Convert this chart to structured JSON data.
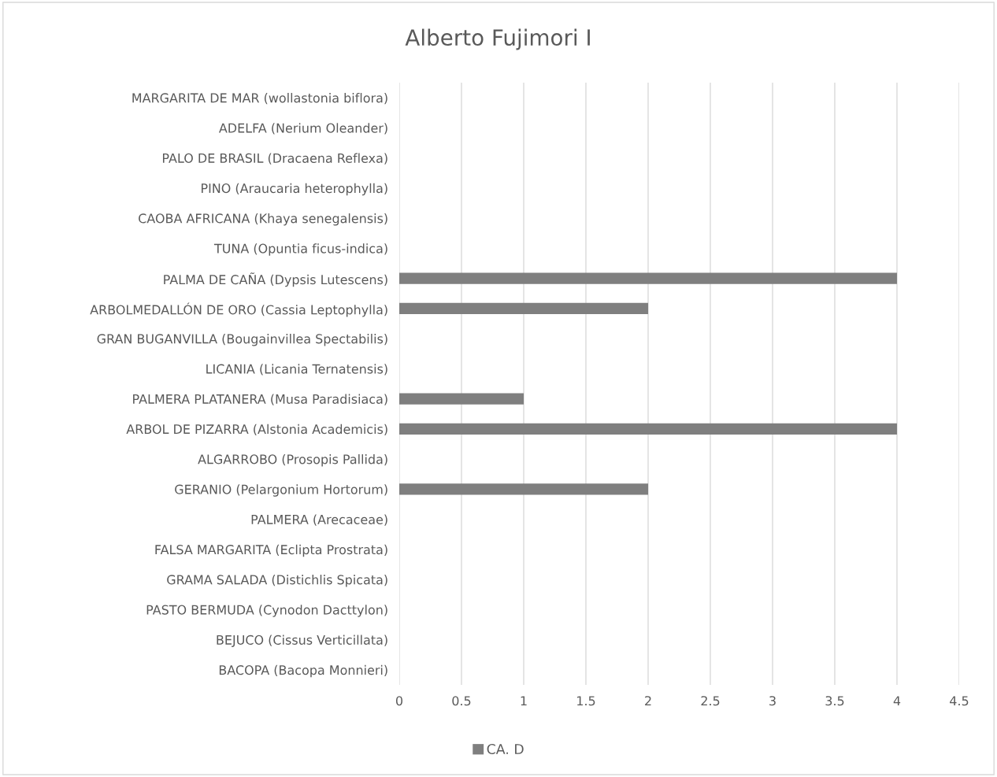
{
  "chart_data": {
    "type": "bar",
    "orientation": "horizontal",
    "title": "Alberto Fujimori I",
    "categories": [
      "MARGARITA DE MAR (wollastonia biflora)",
      "ADELFA (Nerium Oleander)",
      "PALO DE BRASIL (Dracaena Reflexa)",
      "PINO (Araucaria heterophylla)",
      "CAOBA AFRICANA (Khaya senegalensis)",
      "TUNA (Opuntia ficus-indica)",
      "PALMA DE CAÑA (Dypsis Lutescens)",
      "ARBOLMEDALLÓN DE ORO (Cassia Leptophylla)",
      "GRAN BUGANVILLA (Bougainvillea Spectabilis)",
      "LICANIA (Licania Ternatensis)",
      "PALMERA PLATANERA (Musa Paradisiaca)",
      "ARBOL DE PIZARRA (Alstonia Academicis)",
      "ALGARROBO (Prosopis Pallida)",
      "GERANIO (Pelargonium Hortorum)",
      "PALMERA (Arecaceae)",
      "FALSA MARGARITA (Eclipta Prostrata)",
      "GRAMA SALADA (Distichlis Spicata)",
      "PASTO BERMUDA (Cynodon Dacttylon)",
      "BEJUCO (Cissus Verticillata)",
      "BACOPA (Bacopa Monnieri)"
    ],
    "series": [
      {
        "name": "CA. D",
        "color": "#7f7f7f",
        "values": [
          null,
          null,
          null,
          null,
          null,
          null,
          4,
          2,
          null,
          null,
          1,
          4,
          null,
          2,
          null,
          null,
          null,
          null,
          null,
          null
        ]
      }
    ],
    "xlim": [
      0,
      4.5
    ],
    "xticks": [
      0,
      0.5,
      1,
      1.5,
      2,
      2.5,
      3,
      3.5,
      4,
      4.5
    ],
    "grid": "x",
    "legend": "bottom"
  }
}
